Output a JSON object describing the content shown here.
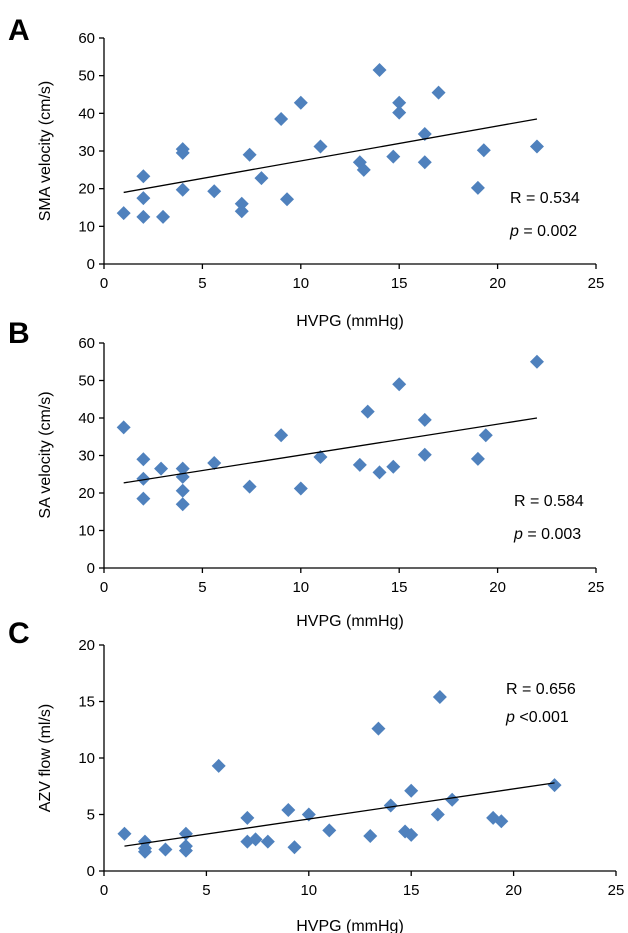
{
  "figure": {
    "panels": [
      "A",
      "B",
      "C"
    ]
  },
  "colors": {
    "marker": "#4f81bd",
    "axis": "#000000"
  },
  "chart_data": [
    {
      "type": "scatter",
      "panel": "A",
      "xlabel": "HVPG (mmHg)",
      "ylabel": "SMA velocity (cm/s)",
      "xlim": [
        0,
        25
      ],
      "ylim": [
        0,
        60
      ],
      "xticks": [
        0,
        5,
        10,
        15,
        20,
        25
      ],
      "yticks": [
        0,
        10,
        20,
        30,
        40,
        50,
        60
      ],
      "r_text": "R = 0.534",
      "p_symbol": "p",
      "p_value": "= 0.002",
      "trendline": [
        [
          1,
          19
        ],
        [
          22,
          38.5
        ]
      ],
      "points": [
        [
          1,
          13.5
        ],
        [
          2,
          23.3
        ],
        [
          2,
          17.5
        ],
        [
          2,
          12.5
        ],
        [
          3,
          12.5
        ],
        [
          4,
          30.5
        ],
        [
          4,
          29.5
        ],
        [
          4,
          19.7
        ],
        [
          5.6,
          19.3
        ],
        [
          7,
          16
        ],
        [
          7,
          14
        ],
        [
          7.4,
          29
        ],
        [
          8,
          22.8
        ],
        [
          9,
          38.5
        ],
        [
          9.3,
          17.2
        ],
        [
          10,
          42.8
        ],
        [
          11,
          31.2
        ],
        [
          13,
          27
        ],
        [
          13.2,
          25
        ],
        [
          14,
          51.5
        ],
        [
          14.7,
          28.5
        ],
        [
          15,
          42.8
        ],
        [
          15,
          40.2
        ],
        [
          16.3,
          34.5
        ],
        [
          16.3,
          27
        ],
        [
          17,
          45.5
        ],
        [
          19,
          20.2
        ],
        [
          19.3,
          30.2
        ],
        [
          22,
          31.2
        ]
      ]
    },
    {
      "type": "scatter",
      "panel": "B",
      "xlabel": "HVPG (mmHg)",
      "ylabel": "SA velocity (cm/s)",
      "xlim": [
        0,
        25
      ],
      "ylim": [
        0,
        60
      ],
      "xticks": [
        0,
        5,
        10,
        15,
        20,
        25
      ],
      "yticks": [
        0,
        10,
        20,
        30,
        40,
        50,
        60
      ],
      "r_text": "R = 0.584",
      "p_symbol": "p",
      "p_value": "= 0.003",
      "trendline": [
        [
          1,
          22.7
        ],
        [
          22,
          40
        ]
      ],
      "points": [
        [
          1,
          37.5
        ],
        [
          2,
          29
        ],
        [
          2,
          23.8
        ],
        [
          2,
          18.5
        ],
        [
          2.9,
          26.5
        ],
        [
          4,
          26.5
        ],
        [
          4,
          24.3
        ],
        [
          4,
          20.6
        ],
        [
          4,
          17
        ],
        [
          5.6,
          28
        ],
        [
          7.4,
          21.7
        ],
        [
          9,
          35.4
        ],
        [
          10,
          21.2
        ],
        [
          11,
          29.6
        ],
        [
          13,
          27.5
        ],
        [
          13.4,
          41.7
        ],
        [
          14,
          25.5
        ],
        [
          14.7,
          27
        ],
        [
          15,
          49
        ],
        [
          16.3,
          39.5
        ],
        [
          16.3,
          30.2
        ],
        [
          19,
          29.1
        ],
        [
          19.4,
          35.4
        ],
        [
          22,
          55
        ]
      ]
    },
    {
      "type": "scatter",
      "panel": "C",
      "xlabel": "HVPG (mmHg)",
      "ylabel": "AZV flow (ml/s)",
      "xlim": [
        0,
        25
      ],
      "ylim": [
        0,
        20
      ],
      "xticks": [
        0,
        5,
        10,
        15,
        20,
        25
      ],
      "yticks": [
        0,
        5,
        10,
        15,
        20
      ],
      "r_text": "R = 0.656",
      "p_symbol": "p",
      "p_value": "<0.001",
      "trendline": [
        [
          1,
          2.2
        ],
        [
          22,
          7.8
        ]
      ],
      "points": [
        [
          1,
          3.3
        ],
        [
          2,
          2.6
        ],
        [
          2,
          2.0
        ],
        [
          2,
          1.7
        ],
        [
          3,
          1.9
        ],
        [
          4,
          3.3
        ],
        [
          4,
          2.2
        ],
        [
          4,
          1.8
        ],
        [
          5.6,
          9.3
        ],
        [
          7,
          4.7
        ],
        [
          7,
          2.6
        ],
        [
          7.4,
          2.8
        ],
        [
          8,
          2.6
        ],
        [
          9,
          5.4
        ],
        [
          9.3,
          2.1
        ],
        [
          10,
          5.0
        ],
        [
          11,
          3.6
        ],
        [
          13,
          3.1
        ],
        [
          13.4,
          12.6
        ],
        [
          14,
          5.8
        ],
        [
          14.7,
          3.5
        ],
        [
          15,
          7.1
        ],
        [
          15,
          3.2
        ],
        [
          16.3,
          5.0
        ],
        [
          16.4,
          15.4
        ],
        [
          17,
          6.3
        ],
        [
          19,
          4.7
        ],
        [
          19.4,
          4.4
        ],
        [
          22,
          7.6
        ]
      ]
    }
  ]
}
